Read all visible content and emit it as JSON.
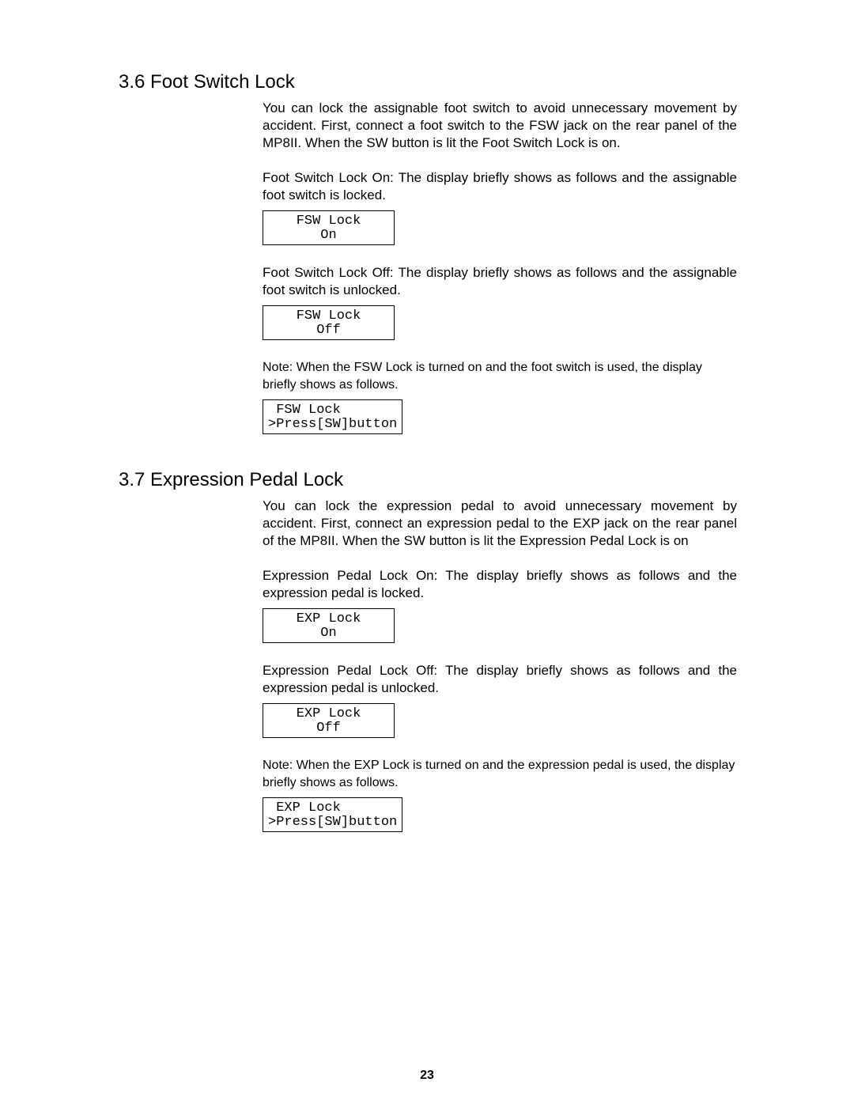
{
  "page_number": "23",
  "sections": [
    {
      "heading": "3.6 Foot Switch Lock",
      "blocks": [
        {
          "type": "p",
          "text": "You can lock the assignable foot switch to avoid unnecessary movement by accident.\nFirst, connect a foot switch to the FSW jack on the rear panel of the MP8II.\nWhen the SW button is lit the Foot Switch Lock is on."
        },
        {
          "type": "p",
          "text": "Foot Switch Lock On: The display briefly shows as follows and the assignable foot switch is locked."
        },
        {
          "type": "display",
          "lines": [
            "FSW Lock",
            "On"
          ],
          "align": "centered"
        },
        {
          "type": "p",
          "text": "Foot Switch Lock Off: The display briefly shows as follows and the assignable foot switch is unlocked."
        },
        {
          "type": "display",
          "lines": [
            "FSW Lock",
            "Off"
          ],
          "align": "centered"
        },
        {
          "type": "note",
          "text": "Note:\nWhen the FSW Lock is turned on and the foot switch is used, the display briefly shows as follows."
        },
        {
          "type": "display",
          "lines": [
            " FSW Lock",
            ">Press[SW]button"
          ],
          "align": "left",
          "wide": true
        }
      ]
    },
    {
      "heading": "3.7 Expression Pedal Lock",
      "blocks": [
        {
          "type": "p",
          "text": "You can lock the expression pedal to avoid unnecessary movement by accident.\nFirst, connect an expression pedal to the EXP jack on the rear panel of the MP8II.\nWhen the SW button is lit the Expression Pedal Lock is on"
        },
        {
          "type": "p",
          "text": "Expression Pedal Lock On: The display briefly shows as follows and the expression pedal is locked."
        },
        {
          "type": "display",
          "lines": [
            "EXP Lock",
            "On"
          ],
          "align": "centered"
        },
        {
          "type": "p",
          "text": "Expression Pedal Lock Off: The display briefly shows as follows and the expression pedal is unlocked."
        },
        {
          "type": "display",
          "lines": [
            "EXP Lock",
            "Off"
          ],
          "align": "centered"
        },
        {
          "type": "note",
          "text": "Note:\nWhen the EXP Lock is turned on and the expression pedal is used, the display briefly shows as follows."
        },
        {
          "type": "display",
          "lines": [
            " EXP Lock",
            ">Press[SW]button"
          ],
          "align": "left",
          "wide": true
        }
      ]
    }
  ]
}
